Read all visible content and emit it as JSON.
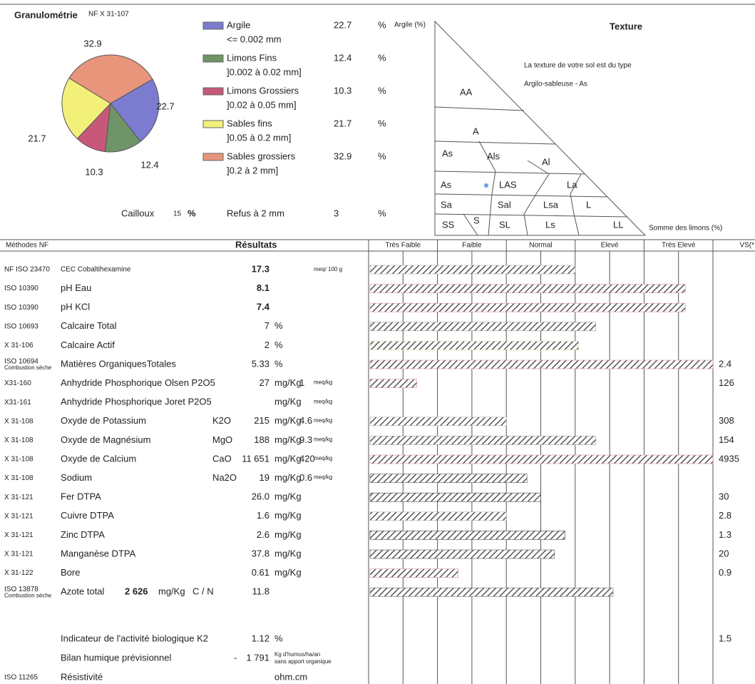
{
  "granulometrie": {
    "title": "Granulométrie",
    "norm": "NF X 31-107",
    "fractions": [
      {
        "name": "Argile",
        "range": "<= 0.002 mm",
        "value": 22.7,
        "unit": "%",
        "color": "#7b7bd0"
      },
      {
        "name": "Limons Fins",
        "range": "]0.002 à 0.02 mm]",
        "value": 12.4,
        "unit": "%",
        "color": "#6e9467"
      },
      {
        "name": "Limons Grossiers",
        "range": "]0.02 à 0.05 mm]",
        "value": 10.3,
        "unit": "%",
        "color": "#c8587a"
      },
      {
        "name": "Sables fins",
        "range": "]0.05 à 0.2 mm]",
        "value": 21.7,
        "unit": "%",
        "color": "#f3f07a"
      },
      {
        "name": "Sables grossiers",
        "range": "]0.2 à 2 mm]",
        "value": 32.9,
        "unit": "%",
        "color": "#e8957b"
      }
    ],
    "cailloux": {
      "label": "Cailloux",
      "value": 15,
      "unit": "%"
    },
    "refus": {
      "label": "Refus à 2 mm",
      "value": 3,
      "unit": "%"
    }
  },
  "texture": {
    "title": "Texture",
    "sentence": "La texture de votre sol est du type",
    "result": "Argilo-sableuse - As",
    "y_axis_label": "Argile (%)",
    "x_axis_label": "Somme des limons (%)",
    "zones": [
      "AA",
      "A",
      "As",
      "Als",
      "Al",
      "As",
      "LAS",
      "La",
      "Sa",
      "Sal",
      "Lsa",
      "L",
      "SS",
      "S",
      "SL",
      "Ls",
      "LL"
    ]
  },
  "table": {
    "headers": {
      "methods": "Méthodes NF",
      "results": "Résultats",
      "classes": [
        "Très Faible",
        "Faible",
        "Normal",
        "Elevé",
        "Très Elevé"
      ],
      "vs": "VS(*"
    },
    "rows": [
      {
        "method": "NF ISO 23470",
        "name": "CEC Cobaltihexamine",
        "value": "17.3",
        "unit": "meq/ 100 g",
        "bar": 3.0,
        "color": "#b0b0b0"
      },
      {
        "method": "ISO 10390",
        "name": "pH Eau",
        "value": "8.1",
        "bar": 4.6,
        "color": "#d88f9c"
      },
      {
        "method": "ISO 10390",
        "name": "pH KCl",
        "value": "7.4",
        "bar": 4.6,
        "color": "#d88f9c"
      },
      {
        "method": "ISO 10693",
        "name": "Calcaire Total",
        "value": "7",
        "unit": "%",
        "bar": 3.3,
        "color": "#999999"
      },
      {
        "method": "X 31-106",
        "name": "Calcaire Actif",
        "value": "2",
        "unit": "%",
        "bar": 3.05,
        "color": "#d8d8a8"
      },
      {
        "method": "ISO 10694",
        "method_note": "Combustion sèche",
        "name": "Matières OrganiquesTotales",
        "value": "5.33",
        "unit": "%",
        "bar": 5.0,
        "color": "#d88f9c",
        "vs": "2.4"
      },
      {
        "method": "X31-160",
        "name": "Anhydride Phosphorique Olsen P2O5",
        "value": "27",
        "unit": "mg/Kg",
        "meq": "1",
        "meq_unit": "meq/kg",
        "bar": 0.7,
        "color": "#d88f9c",
        "vs": "126"
      },
      {
        "method": "X31-161",
        "name": "Anhydride Phosphorique Joret P2O5",
        "unit": "mg/Kg",
        "meq_unit": "meq/kg"
      },
      {
        "method": "X 31-108",
        "name": "Oxyde de Potassium",
        "formula": "K2O",
        "value": "215",
        "unit": "mg/Kg",
        "meq": "4.6",
        "meq_unit": "meq/kg",
        "bar": 2.0,
        "color": "#b0b0b0",
        "vs": "308"
      },
      {
        "method": "X 31-108",
        "name": "Oxyde de Magnésium",
        "formula": "MgO",
        "value": "188",
        "unit": "mg/Kg",
        "meq": "9.3",
        "meq_unit": "meq/kg",
        "bar": 3.3,
        "color": "#999999",
        "vs": "154"
      },
      {
        "method": "X 31-108",
        "name": "Oxyde de Calcium",
        "formula": "CaO",
        "value": "11 651",
        "unit": "mg/Kg",
        "meq": "420",
        "meq_unit": "meq/kg",
        "bar": 5.0,
        "color": "#d88f9c",
        "vs": "4935"
      },
      {
        "method": "X 31-108",
        "name": "Sodium",
        "formula": "Na2O",
        "value": "19",
        "unit": "mg/Kg",
        "meq": "0.6",
        "meq_unit": "meq/kg",
        "bar": 2.3,
        "color": "#555555"
      },
      {
        "method": "X 31-121",
        "name": "Fer DTPA",
        "value": "26.0",
        "unit": "mg/Kg",
        "bar": 2.5,
        "color": "#444444",
        "vs": "30"
      },
      {
        "method": "X 31-121",
        "name": "Cuivre DTPA",
        "value": "1.6",
        "unit": "mg/Kg",
        "bar": 2.0,
        "color": "#b0b0b0",
        "vs": "2.8"
      },
      {
        "method": "X 31-121",
        "name": "Zinc DTPA",
        "value": "2.6",
        "unit": "mg/Kg",
        "bar": 2.85,
        "color": "#444444",
        "vs": "1.3"
      },
      {
        "method": "X 31-121",
        "name": "Manganèse  DTPA",
        "value": "37.8",
        "unit": "mg/Kg",
        "bar": 2.7,
        "color": "#555555",
        "vs": "20"
      },
      {
        "method": "X 31-122",
        "name": "Bore",
        "value": "0.61",
        "unit": "mg/Kg",
        "bar": 1.3,
        "color": "#d88f9c",
        "vs": "0.9"
      },
      {
        "method": "ISO 13878",
        "method_note": "Combustion sèche",
        "name": "Azote total",
        "amount": "2 626",
        "amount_unit": "mg/Kg",
        "formula": "C / N",
        "value": "11.8",
        "bar": 3.55,
        "color": "#666666"
      },
      {
        "name": "Indicateur de l'activité biologique K2",
        "value": "1.12",
        "unit": "%",
        "vs": "1.5"
      },
      {
        "name": "Bilan humique prévisionnel",
        "sign": "-",
        "value": "1 791",
        "unit": "Kg d'humus/ha/an",
        "unit_note": "sans apport organique"
      },
      {
        "method": "ISO 11265",
        "name": "Résistivité",
        "unit": "ohm.cm"
      }
    ]
  }
}
